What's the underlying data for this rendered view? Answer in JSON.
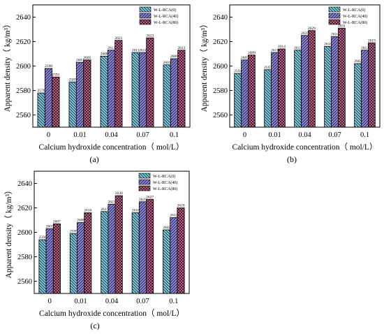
{
  "colors": {
    "series": [
      "#7fd0ea",
      "#8c86e6",
      "#e6679e"
    ],
    "axis": "#000000"
  },
  "patterns": [
    "diag-down",
    "diag-up",
    "crosshatch"
  ],
  "chart_data": [
    {
      "type": "bar",
      "panel_label": "(a)",
      "categories": [
        "0",
        "0.01",
        "0.04",
        "0.07",
        "0.1"
      ],
      "xlabel": "Calcium hydroxide concentration（ mol/L）",
      "ylabel": "Apparent density（ kg/m³）",
      "ylim": [
        2550,
        2650
      ],
      "yticks": [
        2560,
        2580,
        2600,
        2620,
        2640
      ],
      "legend_position": "top-right",
      "series": [
        {
          "name": "W-L-RCA(0)",
          "values": [
            2578,
            2587,
            2608,
            2611,
            2601
          ],
          "labels": [
            "2578",
            "2587",
            "2608",
            "2611",
            "2601"
          ]
        },
        {
          "name": "W-L-RCA(40)",
          "values": [
            2598,
            2603,
            2613,
            2611,
            2606
          ],
          "labels": [
            "2598",
            "2603",
            "2613",
            "2611",
            "2606"
          ]
        },
        {
          "name": "W-L-RCA(80)",
          "values": [
            2591,
            2605,
            2621,
            2623,
            2613
          ],
          "labels": [
            "2591",
            "2605",
            "2621",
            "2623",
            "2613"
          ]
        }
      ]
    },
    {
      "type": "bar",
      "panel_label": "(b)",
      "categories": [
        "0",
        "0.01",
        "0.04",
        "0.07",
        "0.1"
      ],
      "xlabel": "Calcium hydroxide concentration（ mol/L）",
      "ylabel": "Apparent density（ kg/m³）",
      "ylim": [
        2550,
        2650
      ],
      "yticks": [
        2560,
        2580,
        2600,
        2620,
        2640
      ],
      "legend_position": "top-right",
      "series": [
        {
          "name": "W-L-RCA(0)",
          "values": [
            2594,
            2597,
            2613,
            2616,
            2602
          ],
          "labels": [
            "2594",
            "2597",
            "2613",
            "2616",
            "2602"
          ]
        },
        {
          "name": "W-L-RCA(40)",
          "values": [
            2605,
            2611,
            2625,
            2624,
            2613
          ],
          "labels": [
            "2605",
            "2611",
            "2625",
            "2624",
            "2613"
          ]
        },
        {
          "name": "W-L-RCA(80)",
          "values": [
            2609,
            2614,
            2629,
            2631,
            2619
          ],
          "labels": [
            "2609",
            "2614",
            "2629",
            "2631",
            "2619"
          ]
        }
      ]
    },
    {
      "type": "bar",
      "panel_label": "(c)",
      "categories": [
        "0",
        "0.01",
        "0.04",
        "0.07",
        "0.1"
      ],
      "xlabel": "Calcium hydroxide concentration（ mol/L）",
      "ylabel": "Apparent density（ kg/m³）",
      "ylim": [
        2550,
        2650
      ],
      "yticks": [
        2560,
        2580,
        2600,
        2620,
        2640
      ],
      "legend_position": "top-right",
      "series": [
        {
          "name": "W-L-RCA(0)",
          "values": [
            2594,
            2599,
            2617,
            2616,
            2602
          ],
          "labels": [
            "2594",
            "2599",
            "2617",
            "2616",
            "2602"
          ]
        },
        {
          "name": "W-L-RCA(40)",
          "values": [
            2603,
            2608,
            2623,
            2625,
            2612
          ],
          "labels": [
            "2603",
            "2608",
            "2623",
            "2625",
            "2612"
          ]
        },
        {
          "name": "W-L-RCA(80)",
          "values": [
            2607,
            2616,
            2630,
            2627,
            2620
          ],
          "labels": [
            "2607",
            "2616",
            "2630",
            "2627",
            "2620"
          ]
        }
      ]
    }
  ]
}
